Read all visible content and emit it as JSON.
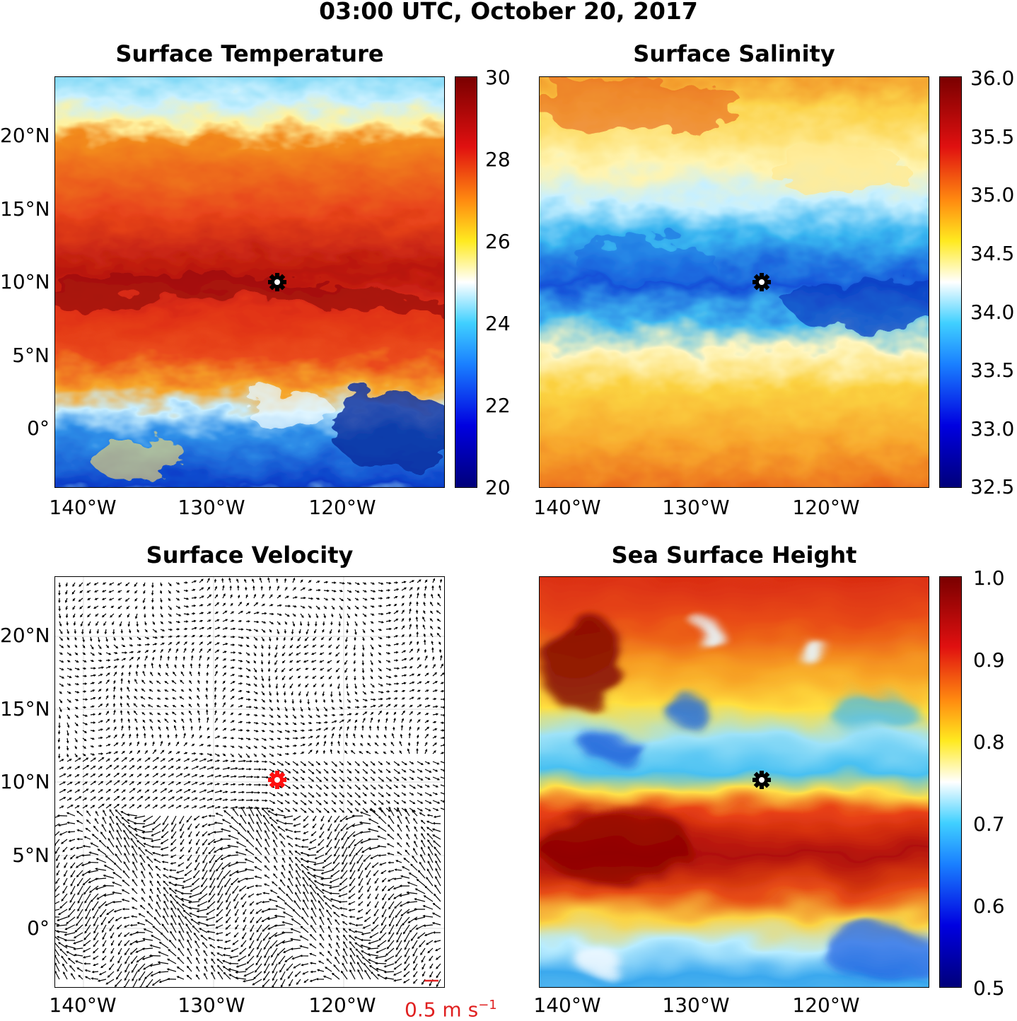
{
  "suptitle": "03:00 UTC, October 20, 2017",
  "marker": {
    "lon": "125°W",
    "lat": "10°N",
    "shape": "gear",
    "colors": [
      "#000000",
      "#ff0000"
    ]
  },
  "lat_ticks": [
    "20°N",
    "15°N",
    "10°N",
    "5°N",
    "0°"
  ],
  "lon_ticks": [
    "140°W",
    "130°W",
    "120°W"
  ],
  "panels": {
    "temperature": {
      "title": "Surface Temperature",
      "colorbar": {
        "ticks": [
          "30",
          "28",
          "26",
          "24",
          "22",
          "20"
        ],
        "range": [
          20,
          30
        ],
        "colormap": "jet-like"
      }
    },
    "salinity": {
      "title": "Surface Salinity",
      "colorbar": {
        "ticks": [
          "36.0",
          "35.5",
          "35.0",
          "34.5",
          "34.0",
          "33.5",
          "33.0",
          "32.5"
        ],
        "range": [
          32.5,
          36.0
        ],
        "colormap": "jet-like"
      }
    },
    "velocity": {
      "title": "Surface Velocity",
      "scale_value": "0.5 m s",
      "scale_exp": "−1",
      "scale_color": "#e02020"
    },
    "ssh": {
      "title": "Sea Surface Height",
      "colorbar": {
        "ticks": [
          "1.0",
          "0.9",
          "0.8",
          "0.7",
          "0.6",
          "0.5"
        ],
        "range": [
          0.5,
          1.0
        ],
        "colormap": "jet-like"
      }
    }
  }
}
